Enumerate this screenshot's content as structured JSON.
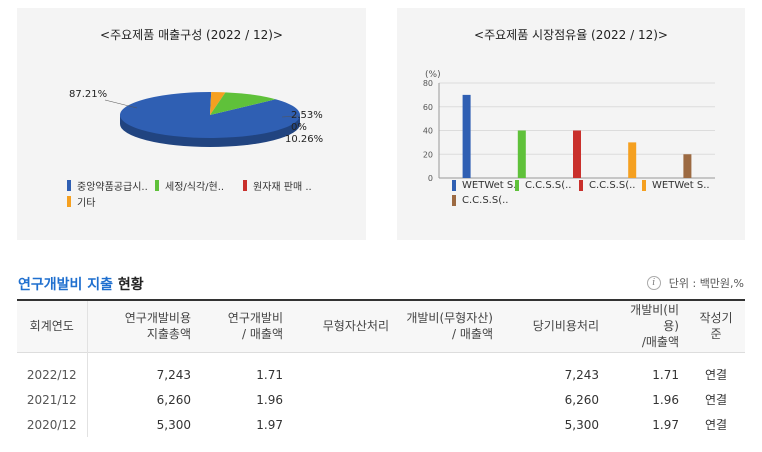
{
  "left_panel": {
    "title": "<주요제품 매출구성 (2022 / 12)>",
    "pie_labels": {
      "main": "87.21%",
      "l1": "2.53%",
      "l2": "0%",
      "l3": "10.26%"
    },
    "legend": [
      {
        "label": "중앙약품공급시..",
        "color": "#2f5fb3"
      },
      {
        "label": "세정/식각/현..",
        "color": "#5fc13a"
      },
      {
        "label": "원자재 판매 ..",
        "color": "#c9302c"
      },
      {
        "label": "기타",
        "color": "#f5a020"
      }
    ]
  },
  "right_panel": {
    "title": "<주요제품 시장점유율 (2022 / 12)>",
    "legend": [
      {
        "label": "WETWet S..",
        "color": "#2f5fb3"
      },
      {
        "label": "C.C.S.S(..",
        "color": "#5fc13a"
      },
      {
        "label": "C.C.S.S(..",
        "color": "#c9302c"
      },
      {
        "label": "WETWet S..",
        "color": "#f5a020"
      },
      {
        "label": "C.C.S.S(..",
        "color": "#9c6a42"
      }
    ]
  },
  "section": {
    "title_blue": "연구개발비 지출",
    "title_dark": " 현황",
    "unit_icon": "info-icon",
    "unit_text": "단위 : 백만원,%"
  },
  "table": {
    "headers": [
      "회계연도",
      "연구개발비용\n지출총액",
      "연구개발비\n/ 매출액",
      "무형자산처리",
      "개발비(무형자산)\n/ 매출액",
      "당기비용처리",
      "개발비(비용)\n/매출액",
      "작성기준"
    ],
    "rows": [
      [
        "2022/12",
        "7,243",
        "1.71",
        "",
        "",
        "7,243",
        "1.71",
        "연결"
      ],
      [
        "2021/12",
        "6,260",
        "1.96",
        "",
        "",
        "6,260",
        "1.96",
        "연결"
      ],
      [
        "2020/12",
        "5,300",
        "1.97",
        "",
        "",
        "5,300",
        "1.97",
        "연결"
      ]
    ]
  },
  "chart_data": [
    {
      "type": "pie",
      "title": "<주요제품 매출구성 (2022 / 12)>",
      "categories": [
        "중앙약품공급시..",
        "세정/식각/현..",
        "원자재 판매 ..",
        "기타"
      ],
      "values": [
        87.21,
        10.26,
        0,
        2.53
      ],
      "colors": [
        "#2f5fb3",
        "#5fc13a",
        "#c9302c",
        "#f5a020"
      ]
    },
    {
      "type": "bar",
      "title": "<주요제품 시장점유율 (2022 / 12)>",
      "ylabel": "(%)",
      "ylim": [
        0,
        80
      ],
      "yticks": [
        0,
        20,
        40,
        60,
        80
      ],
      "categories": [
        "WETWet S..",
        "C.C.S.S(..",
        "C.C.S.S(..",
        "WETWet S..",
        "C.C.S.S(.."
      ],
      "values": [
        70,
        40,
        40,
        30,
        20
      ],
      "colors": [
        "#2f5fb3",
        "#5fc13a",
        "#c9302c",
        "#f5a020",
        "#9c6a42"
      ],
      "grid": true
    }
  ]
}
